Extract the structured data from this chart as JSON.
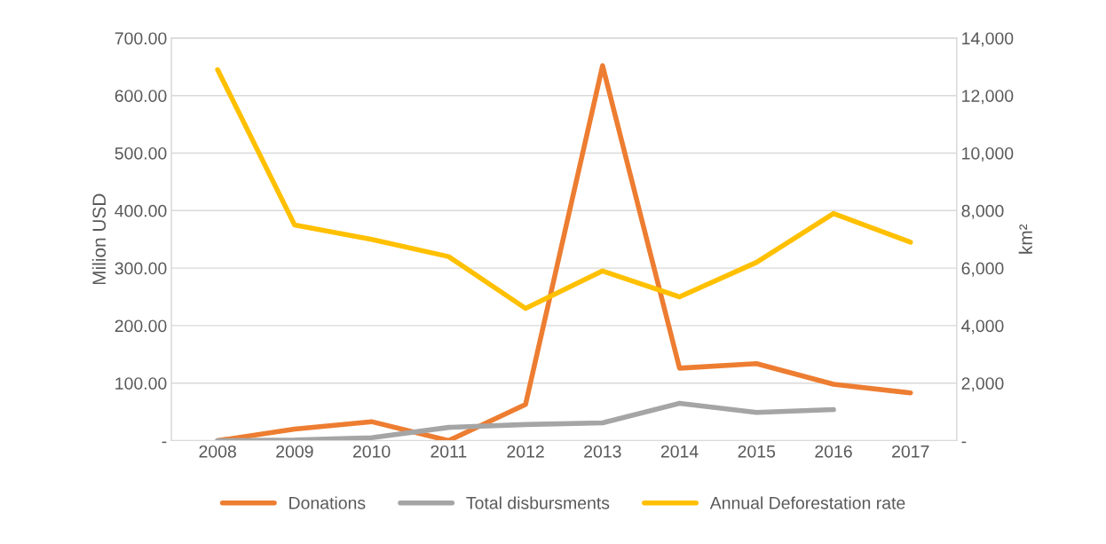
{
  "chart_data": {
    "type": "line",
    "ylabel": "Milion USD",
    "y2label": "km²",
    "categories": [
      "2008",
      "2009",
      "2010",
      "2011",
      "2012",
      "2013",
      "2014",
      "2015",
      "2016",
      "2017"
    ],
    "series": [
      {
        "name": "Donations",
        "color": "#ed7d31",
        "values": [
          0,
          20,
          33,
          0,
          63,
          652,
          126,
          134,
          98,
          83
        ]
      },
      {
        "name": "Total disbursments",
        "color": "#a5a5a5",
        "values": [
          0,
          1,
          5,
          23,
          28,
          31,
          65,
          49,
          54,
          null
        ]
      },
      {
        "name": "Annual Deforestation rate",
        "color": "#ffc000",
        "axis": "y2",
        "values": [
          12900,
          7500,
          7000,
          6400,
          4600,
          5900,
          5000,
          6200,
          7900,
          6900
        ]
      }
    ],
    "ylim": [
      0,
      700
    ],
    "yticks": [
      {
        "value": 0,
        "label": "-"
      },
      {
        "value": 100,
        "label": "100.00"
      },
      {
        "value": 200,
        "label": "200.00"
      },
      {
        "value": 300,
        "label": "300.00"
      },
      {
        "value": 400,
        "label": "400.00"
      },
      {
        "value": 500,
        "label": "500.00"
      },
      {
        "value": 600,
        "label": "600.00"
      },
      {
        "value": 700,
        "label": "700.00"
      }
    ],
    "y2lim": [
      0,
      14000
    ],
    "y2ticks": [
      {
        "value": 0,
        "label": "-"
      },
      {
        "value": 2000,
        "label": "2,000"
      },
      {
        "value": 4000,
        "label": "4,000"
      },
      {
        "value": 6000,
        "label": "6,000"
      },
      {
        "value": 8000,
        "label": "8,000"
      },
      {
        "value": 10000,
        "label": "10,000"
      },
      {
        "value": 12000,
        "label": "12,000"
      },
      {
        "value": 14000,
        "label": "14,000"
      }
    ],
    "grid": "y",
    "legend": "bottom",
    "marker": "none",
    "line_style": "solid"
  }
}
